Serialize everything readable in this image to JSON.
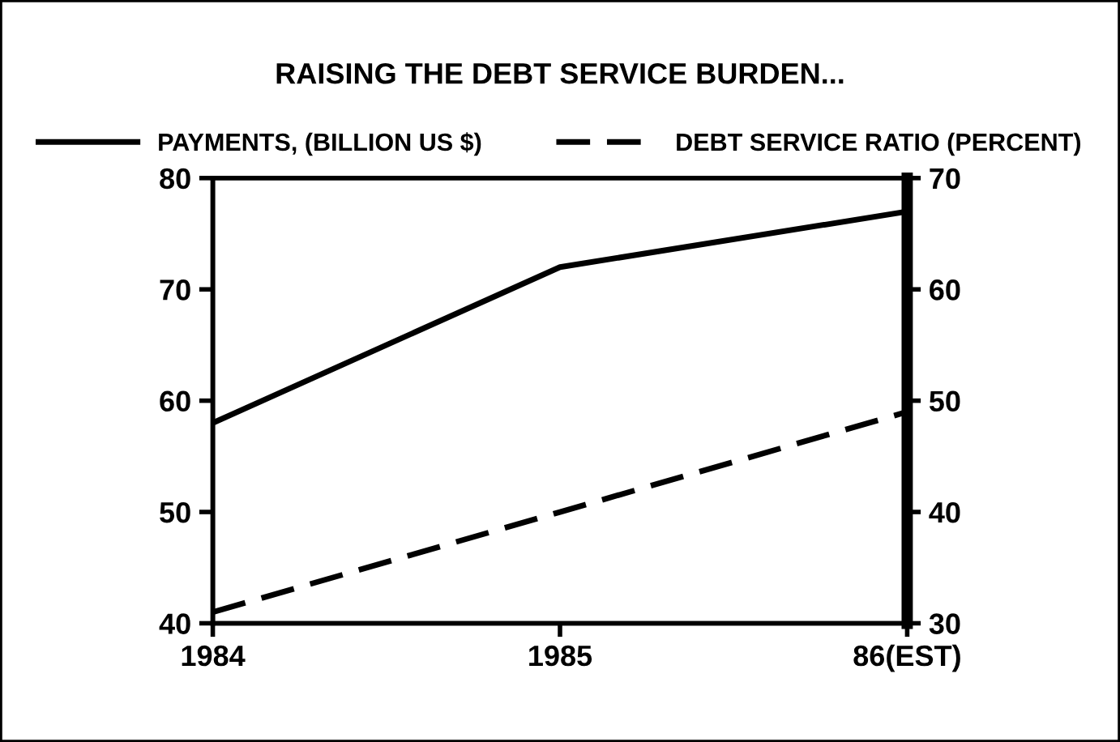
{
  "chart_data": {
    "type": "line",
    "title": "RAISING THE DEBT SERVICE BURDEN...",
    "categories": [
      "1984",
      "1985",
      "86(EST)"
    ],
    "series": [
      {
        "name": "PAYMENTS, (BILLION US $)",
        "color": "#000000",
        "values": [
          58,
          72,
          77
        ],
        "line_style": "solid"
      },
      {
        "name": "DEBT SERVICE RATIO (PERCENT)",
        "color": "#000000",
        "values": [
          31,
          40,
          49
        ],
        "line_style": "dashed",
        "axis": "y2"
      }
    ],
    "ylim": [
      40,
      80
    ],
    "yticks": [
      40,
      50,
      60,
      70,
      80
    ],
    "y2lim": [
      30,
      70
    ],
    "y2ticks": [
      30,
      40,
      50,
      60,
      70
    ],
    "grid": false,
    "legend": "top",
    "marker": "none"
  }
}
